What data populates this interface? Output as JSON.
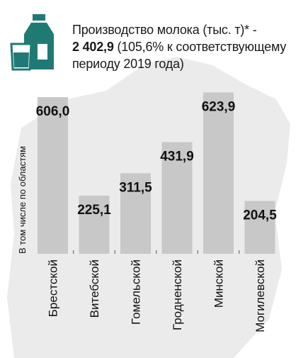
{
  "header": {
    "line1": "Производство молока (тыс. т)* -",
    "total": "2 402,9",
    "line2_rest": " (105,6% к соответствующему",
    "line3": "периоду 2019 года)"
  },
  "colors": {
    "accent": "#1f7a74",
    "bar": "#c8c8c8",
    "map_bg": "#ebebeb"
  },
  "icon": "milk-bottle-and-glass-icon",
  "chart_data": {
    "type": "bar",
    "ylabel": "В том числе по областям",
    "categories": [
      "Брестской",
      "Витебской",
      "Гомельской",
      "Гродненской",
      "Минской",
      "Могилевской"
    ],
    "values": [
      606.0,
      225.1,
      311.5,
      431.9,
      623.9,
      204.5
    ],
    "value_labels": [
      "606,0",
      "225,1",
      "311,5",
      "431,9",
      "623,9",
      "204,5"
    ],
    "ylim": [
      0,
      680
    ],
    "grid": false,
    "legend": "none"
  }
}
